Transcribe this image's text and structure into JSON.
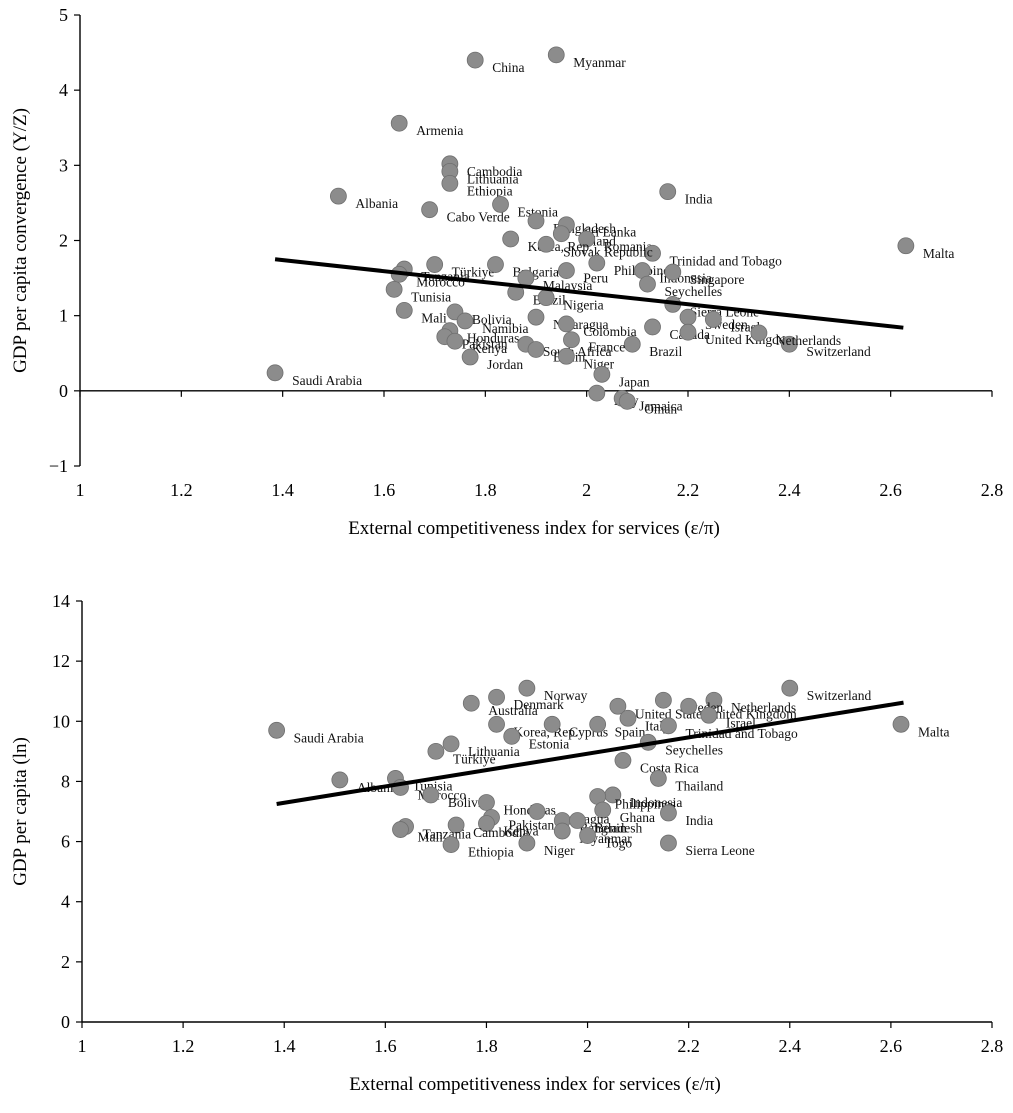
{
  "chart_data": [
    {
      "type": "scatter",
      "xlabel": "External competitiveness index for services (ε/π)",
      "ylabel": "GDP per capita convergence (Y/Z)",
      "xlim": [
        1,
        2.8
      ],
      "ylim": [
        -1,
        5
      ],
      "xticks": [
        "1",
        "1.2",
        "1.4",
        "1.6",
        "1.8",
        "2",
        "2.2",
        "2.4",
        "2.6",
        "2.8"
      ],
      "yticks": [
        "−1",
        "0",
        "1",
        "2",
        "3",
        "4",
        "5"
      ],
      "trendline": [
        [
          1.385,
          1.75
        ],
        [
          2.625,
          0.84
        ]
      ],
      "points": [
        {
          "x": 1.78,
          "y": 4.4,
          "label": "China"
        },
        {
          "x": 1.94,
          "y": 4.47,
          "label": "Myanmar"
        },
        {
          "x": 1.63,
          "y": 3.56,
          "label": "Armenia"
        },
        {
          "x": 1.73,
          "y": 3.02,
          "label": "Cambodia"
        },
        {
          "x": 1.73,
          "y": 2.92,
          "label": "Lithuania"
        },
        {
          "x": 1.73,
          "y": 2.76,
          "label": "Ethiopia"
        },
        {
          "x": 1.51,
          "y": 2.59,
          "label": "Albania"
        },
        {
          "x": 2.16,
          "y": 2.65,
          "label": "India"
        },
        {
          "x": 1.69,
          "y": 2.41,
          "label": "Cabo Verde"
        },
        {
          "x": 1.83,
          "y": 2.48,
          "label": "Estonia"
        },
        {
          "x": 1.9,
          "y": 2.26,
          "label": "Bangladesh"
        },
        {
          "x": 1.96,
          "y": 2.21,
          "label": "Sri Lanka"
        },
        {
          "x": 1.95,
          "y": 2.09,
          "label": "Poland"
        },
        {
          "x": 2.0,
          "y": 2.02,
          "label": "Romania"
        },
        {
          "x": 2.13,
          "y": 1.83,
          "label": "Trinidad and Tobago"
        },
        {
          "x": 2.63,
          "y": 1.93,
          "label": "Malta"
        },
        {
          "x": 1.85,
          "y": 2.02,
          "label": "Korea, Rep."
        },
        {
          "x": 1.92,
          "y": 1.95,
          "label": "Slovak Republic"
        },
        {
          "x": 2.02,
          "y": 1.7,
          "label": "Philippines"
        },
        {
          "x": 2.11,
          "y": 1.6,
          "label": "Indonesia"
        },
        {
          "x": 2.17,
          "y": 1.58,
          "label": "Singapore"
        },
        {
          "x": 1.7,
          "y": 1.68,
          "label": "Türkiye"
        },
        {
          "x": 1.64,
          "y": 1.62,
          "label": "Tanzania"
        },
        {
          "x": 1.63,
          "y": 1.55,
          "label": "Morocco"
        },
        {
          "x": 1.82,
          "y": 1.68,
          "label": "Bulgaria"
        },
        {
          "x": 1.96,
          "y": 1.6,
          "label": "Peru"
        },
        {
          "x": 2.12,
          "y": 1.42,
          "label": "Seychelles"
        },
        {
          "x": 1.88,
          "y": 1.5,
          "label": "Malaysia"
        },
        {
          "x": 1.62,
          "y": 1.35,
          "label": "Tunisia"
        },
        {
          "x": 1.86,
          "y": 1.31,
          "label": "Brazil"
        },
        {
          "x": 1.92,
          "y": 1.24,
          "label": "Nigeria"
        },
        {
          "x": 1.74,
          "y": 1.05,
          "label": "Bolivia"
        },
        {
          "x": 2.17,
          "y": 1.15,
          "label": "Sierra Leone"
        },
        {
          "x": 1.64,
          "y": 1.07,
          "label": "Mali"
        },
        {
          "x": 1.9,
          "y": 0.98,
          "label": "Nicaragua"
        },
        {
          "x": 1.76,
          "y": 0.93,
          "label": "Namibia"
        },
        {
          "x": 1.96,
          "y": 0.89,
          "label": "Colombia"
        },
        {
          "x": 2.2,
          "y": 0.98,
          "label": "Sweden"
        },
        {
          "x": 2.25,
          "y": 0.95,
          "label": "Israel"
        },
        {
          "x": 2.13,
          "y": 0.85,
          "label": "Canada"
        },
        {
          "x": 2.2,
          "y": 0.78,
          "label": "United Kingdom"
        },
        {
          "x": 2.4,
          "y": 0.62,
          "label": "Switzerland"
        },
        {
          "x": 2.34,
          "y": 0.77,
          "label": "Netherlands"
        },
        {
          "x": 1.73,
          "y": 0.8,
          "label": "Honduras"
        },
        {
          "x": 1.72,
          "y": 0.72,
          "label": "Pakistan"
        },
        {
          "x": 1.74,
          "y": 0.66,
          "label": "Kenya"
        },
        {
          "x": 1.88,
          "y": 0.62,
          "label": "South Africa"
        },
        {
          "x": 2.09,
          "y": 0.62,
          "label": "Brazil"
        },
        {
          "x": 1.97,
          "y": 0.68,
          "label": "France"
        },
        {
          "x": 1.9,
          "y": 0.55,
          "label": "Benin"
        },
        {
          "x": 1.77,
          "y": 0.45,
          "label": "Jordan"
        },
        {
          "x": 1.96,
          "y": 0.46,
          "label": "Niger"
        },
        {
          "x": 2.03,
          "y": 0.22,
          "label": "Japan"
        },
        {
          "x": 2.02,
          "y": -0.03,
          "label": "Italy"
        },
        {
          "x": 2.07,
          "y": -0.1,
          "label": "Jamaica"
        },
        {
          "x": 2.08,
          "y": -0.14,
          "label": "Oman"
        },
        {
          "x": 1.385,
          "y": 0.24,
          "label": "Saudi Arabia"
        }
      ]
    },
    {
      "type": "scatter",
      "xlabel": "External competitiveness index for services (ε/π)",
      "ylabel": "GDP per capita (ln)",
      "xlim": [
        1,
        2.8
      ],
      "ylim": [
        0,
        14
      ],
      "xticks": [
        "1",
        "1.2",
        "1.4",
        "1.6",
        "1.8",
        "2",
        "2.2",
        "2.4",
        "2.6",
        "2.8"
      ],
      "yticks": [
        "0",
        "2",
        "4",
        "6",
        "8",
        "10",
        "12",
        "14"
      ],
      "trendline": [
        [
          1.385,
          7.25
        ],
        [
          2.625,
          10.62
        ]
      ],
      "points": [
        {
          "x": 2.4,
          "y": 11.1,
          "label": "Switzerland"
        },
        {
          "x": 1.88,
          "y": 11.1,
          "label": "Norway"
        },
        {
          "x": 1.82,
          "y": 10.8,
          "label": "Denmark"
        },
        {
          "x": 1.77,
          "y": 10.6,
          "label": "Australia"
        },
        {
          "x": 2.25,
          "y": 10.7,
          "label": "Netherlands"
        },
        {
          "x": 2.15,
          "y": 10.7,
          "label": "Sweden"
        },
        {
          "x": 2.06,
          "y": 10.5,
          "label": "United States"
        },
        {
          "x": 2.2,
          "y": 10.5,
          "label": "United Kingdom"
        },
        {
          "x": 2.08,
          "y": 10.1,
          "label": "Italy"
        },
        {
          "x": 2.62,
          "y": 9.9,
          "label": "Malta"
        },
        {
          "x": 2.24,
          "y": 10.2,
          "label": "Israel"
        },
        {
          "x": 2.16,
          "y": 9.85,
          "label": "Trinidad and Tobago"
        },
        {
          "x": 1.82,
          "y": 9.9,
          "label": "Korea, Rep."
        },
        {
          "x": 1.93,
          "y": 9.9,
          "label": "Cyprus"
        },
        {
          "x": 2.02,
          "y": 9.9,
          "label": "Spain"
        },
        {
          "x": 1.385,
          "y": 9.7,
          "label": "Saudi Arabia"
        },
        {
          "x": 1.85,
          "y": 9.5,
          "label": "Estonia"
        },
        {
          "x": 2.12,
          "y": 9.3,
          "label": "Seychelles"
        },
        {
          "x": 1.73,
          "y": 9.25,
          "label": "Lithuania"
        },
        {
          "x": 1.7,
          "y": 9.0,
          "label": "Türkiye"
        },
        {
          "x": 2.07,
          "y": 8.7,
          "label": "Costa Rica"
        },
        {
          "x": 2.14,
          "y": 8.1,
          "label": "Thailand"
        },
        {
          "x": 1.51,
          "y": 8.05,
          "label": "Albania"
        },
        {
          "x": 1.62,
          "y": 8.1,
          "label": "Tunisia"
        },
        {
          "x": 1.63,
          "y": 7.8,
          "label": "Morocco"
        },
        {
          "x": 1.69,
          "y": 7.55,
          "label": "Bolivia"
        },
        {
          "x": 2.05,
          "y": 7.55,
          "label": "Indonesia"
        },
        {
          "x": 2.02,
          "y": 7.5,
          "label": "Philippines"
        },
        {
          "x": 1.8,
          "y": 7.3,
          "label": "Honduras"
        },
        {
          "x": 2.03,
          "y": 7.05,
          "label": "Ghana"
        },
        {
          "x": 2.16,
          "y": 6.95,
          "label": "India"
        },
        {
          "x": 1.9,
          "y": 7.0,
          "label": "Nicaragua"
        },
        {
          "x": 1.81,
          "y": 6.8,
          "label": "Pakistan"
        },
        {
          "x": 1.95,
          "y": 6.7,
          "label": "Bangladesh"
        },
        {
          "x": 1.98,
          "y": 6.7,
          "label": "Benin"
        },
        {
          "x": 1.8,
          "y": 6.6,
          "label": "Kenya"
        },
        {
          "x": 1.74,
          "y": 6.55,
          "label": "Cambodia"
        },
        {
          "x": 1.64,
          "y": 6.5,
          "label": "Tanzania"
        },
        {
          "x": 1.63,
          "y": 6.4,
          "label": "Mali"
        },
        {
          "x": 1.95,
          "y": 6.35,
          "label": "Myanmar"
        },
        {
          "x": 2.0,
          "y": 6.2,
          "label": "Togo"
        },
        {
          "x": 1.88,
          "y": 5.95,
          "label": "Niger"
        },
        {
          "x": 2.16,
          "y": 5.95,
          "label": "Sierra Leone"
        },
        {
          "x": 1.73,
          "y": 5.9,
          "label": "Ethiopia"
        }
      ]
    }
  ]
}
